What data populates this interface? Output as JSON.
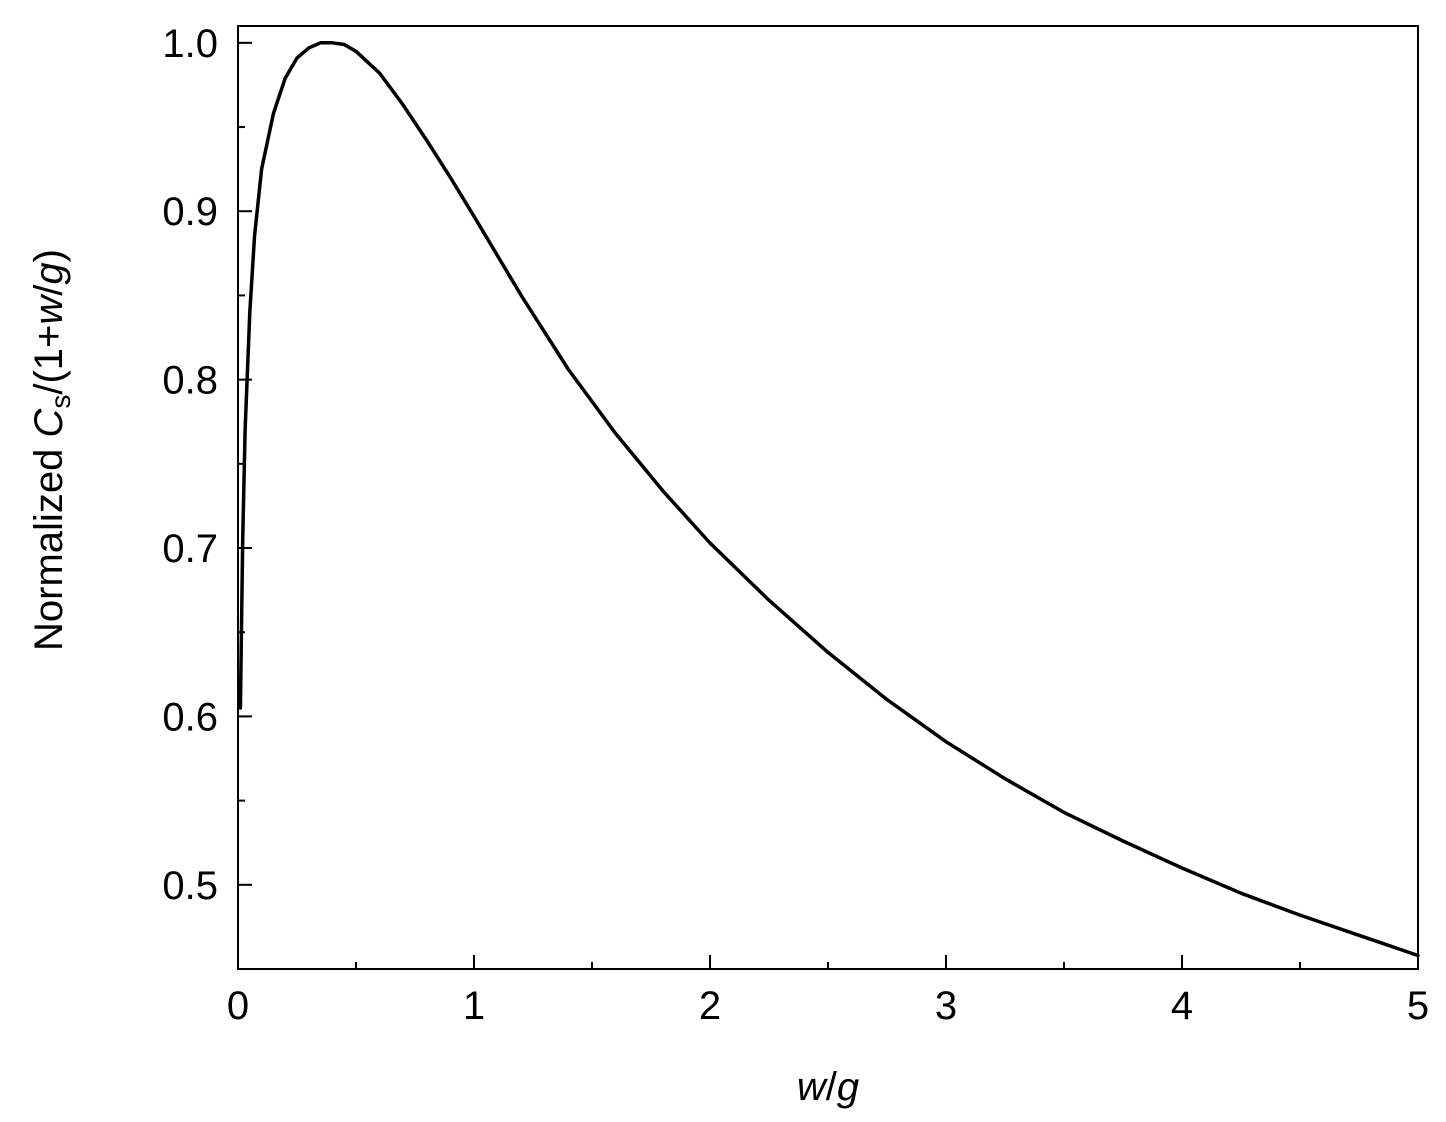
{
  "chart_data": {
    "type": "line",
    "title": "",
    "xlabel": "w/g",
    "xlabel_parts": {
      "w": "w",
      "slash": "/",
      "g": "g"
    },
    "ylabel": "Normalized Cs/(1+w/g)",
    "ylabel_parts": {
      "prefix": "Normalized ",
      "C": "C",
      "sub": "s",
      "mid": "/(1+",
      "w": "w",
      "slash": "/",
      "g": "g",
      "close": ")"
    },
    "xlim": [
      0,
      5
    ],
    "ylim": [
      0.45,
      1.01
    ],
    "xticks": [
      0,
      1,
      2,
      3,
      4,
      5
    ],
    "xtick_labels": [
      "0",
      "1",
      "2",
      "3",
      "4",
      "5"
    ],
    "x_minor_ticks": [
      0.5,
      1.5,
      2.5,
      3.5,
      4.5
    ],
    "yticks": [
      0.5,
      0.6,
      0.7,
      0.8,
      0.9,
      1.0
    ],
    "ytick_labels": [
      "0.5",
      "0.6",
      "0.7",
      "0.8",
      "0.9",
      "1.0"
    ],
    "y_minor_ticks": [
      0.55,
      0.65,
      0.75,
      0.85,
      0.95
    ],
    "grid": false,
    "line_color": "#000000",
    "series": [
      {
        "x": [
          0.01,
          0.02,
          0.03,
          0.05,
          0.07,
          0.1,
          0.15,
          0.2,
          0.25,
          0.3,
          0.35,
          0.4,
          0.45,
          0.5,
          0.6,
          0.7,
          0.8,
          0.9,
          1.0,
          1.2,
          1.4,
          1.6,
          1.8,
          2.0,
          2.25,
          2.5,
          2.75,
          3.0,
          3.25,
          3.5,
          3.75,
          4.0,
          4.25,
          4.5,
          4.75,
          5.0
        ],
        "y": [
          0.605,
          0.705,
          0.77,
          0.84,
          0.885,
          0.925,
          0.958,
          0.979,
          0.991,
          0.997,
          1.0,
          1.0,
          0.999,
          0.995,
          0.982,
          0.963,
          0.942,
          0.92,
          0.897,
          0.85,
          0.806,
          0.768,
          0.734,
          0.703,
          0.669,
          0.638,
          0.61,
          0.585,
          0.563,
          0.543,
          0.526,
          0.51,
          0.495,
          0.482,
          0.47,
          0.458
        ]
      }
    ]
  }
}
